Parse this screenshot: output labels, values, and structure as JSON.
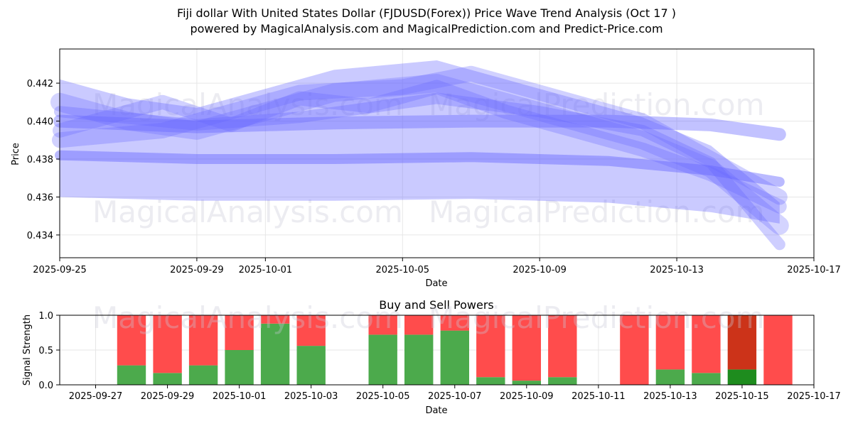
{
  "title_line1": "Fiji dollar With United States Dollar (FJDUSD(Forex)) Price Wave Trend Analysis (Oct 17 )",
  "title_line2": "powered by MagicalAnalysis.com and MagicalPrediction.com and Predict-Price.com",
  "watermarks": [
    "MagicalAnalysis.com",
    "MagicalPrediction.com"
  ],
  "chart_data": [
    {
      "type": "area",
      "xlabel": "Date",
      "ylabel": "Price",
      "x_ticks": [
        "2025-09-25",
        "2025-09-29",
        "2025-10-01",
        "2025-10-05",
        "2025-10-09",
        "2025-10-13",
        "2025-10-17"
      ],
      "y_ticks": [
        "0.434",
        "0.436",
        "0.438",
        "0.440",
        "0.442"
      ],
      "xlim": [
        "2025-09-25",
        "2025-10-17"
      ],
      "ylim": [
        0.4328,
        0.4438
      ],
      "grid": true,
      "color": "#6666ff",
      "series": [
        {
          "x": [
            "2025-09-25",
            "2025-09-29",
            "2025-10-03",
            "2025-10-07",
            "2025-10-11",
            "2025-10-14",
            "2025-10-16"
          ],
          "y": [
            0.4382,
            0.438,
            0.438,
            0.4381,
            0.4379,
            0.4374,
            0.4368
          ]
        },
        {
          "x": [
            "2025-09-25",
            "2025-09-29",
            "2025-10-03",
            "2025-10-07",
            "2025-10-11",
            "2025-10-14",
            "2025-10-16"
          ],
          "y": [
            0.44,
            0.4397,
            0.4399,
            0.44,
            0.44,
            0.4398,
            0.4393
          ]
        },
        {
          "x": [
            "2025-09-25",
            "2025-09-28",
            "2025-09-30",
            "2025-10-02",
            "2025-10-05",
            "2025-10-07",
            "2025-10-09",
            "2025-10-12",
            "2025-10-14",
            "2025-10-16"
          ],
          "y": [
            0.439,
            0.4395,
            0.4405,
            0.4415,
            0.4418,
            0.4425,
            0.4415,
            0.44,
            0.438,
            0.436
          ]
        },
        {
          "x": [
            "2025-09-25",
            "2025-09-27",
            "2025-09-29",
            "2025-10-01",
            "2025-10-03",
            "2025-10-06",
            "2025-10-08",
            "2025-10-10",
            "2025-10-12",
            "2025-10-14",
            "2025-10-16"
          ],
          "y": [
            0.441,
            0.44,
            0.4395,
            0.4405,
            0.4415,
            0.442,
            0.441,
            0.44,
            0.439,
            0.4375,
            0.4345
          ]
        },
        {
          "x": [
            "2025-09-25",
            "2025-09-28",
            "2025-09-30",
            "2025-10-02",
            "2025-10-04",
            "2025-10-06",
            "2025-10-08",
            "2025-10-10",
            "2025-10-12",
            "2025-10-14",
            "2025-10-16"
          ],
          "y": [
            0.4395,
            0.441,
            0.4398,
            0.4412,
            0.4408,
            0.4418,
            0.4405,
            0.4395,
            0.4385,
            0.4372,
            0.4355
          ]
        },
        {
          "x": [
            "2025-09-25",
            "2025-09-29",
            "2025-10-02",
            "2025-10-06",
            "2025-10-09",
            "2025-10-12",
            "2025-10-14",
            "2025-10-16"
          ],
          "y": [
            0.4405,
            0.4398,
            0.4402,
            0.4412,
            0.4405,
            0.4395,
            0.4378,
            0.4335
          ]
        }
      ]
    },
    {
      "type": "bar",
      "title": "Buy and Sell Powers",
      "xlabel": "Date",
      "ylabel": "Signal Strength",
      "x_ticks": [
        "2025-09-27",
        "2025-09-29",
        "2025-10-01",
        "2025-10-03",
        "2025-10-05",
        "2025-10-07",
        "2025-10-09",
        "2025-10-11",
        "2025-10-13",
        "2025-10-15",
        "2025-10-17"
      ],
      "y_ticks": [
        "0.0",
        "0.5",
        "1.0"
      ],
      "xlim": [
        "2025-09-26",
        "2025-10-17"
      ],
      "ylim": [
        0,
        1
      ],
      "grid": true,
      "buy_color": "#4caa4c",
      "sell_color": "#ff4c4c",
      "highlight_buy_color": "#1e8c1e",
      "highlight_sell_color": "#cc3319",
      "categories": [
        "2025-09-28",
        "2025-09-29",
        "2025-09-30",
        "2025-10-01",
        "2025-10-02",
        "2025-10-03",
        "2025-10-05",
        "2025-10-06",
        "2025-10-07",
        "2025-10-08",
        "2025-10-09",
        "2025-10-10",
        "2025-10-12",
        "2025-10-13",
        "2025-10-14",
        "2025-10-15",
        "2025-10-16"
      ],
      "series": [
        {
          "name": "Buy",
          "values": [
            0.28,
            0.17,
            0.28,
            0.5,
            0.88,
            0.56,
            0.72,
            0.72,
            0.78,
            0.11,
            0.06,
            0.11,
            0.0,
            0.22,
            0.17,
            0.22,
            0.0
          ]
        },
        {
          "name": "Sell",
          "values": [
            0.72,
            0.83,
            0.72,
            0.5,
            0.12,
            0.44,
            0.28,
            0.28,
            0.22,
            0.89,
            0.94,
            0.89,
            1.0,
            0.78,
            0.83,
            0.78,
            1.0
          ]
        }
      ],
      "highlight_category": "2025-10-15"
    }
  ]
}
